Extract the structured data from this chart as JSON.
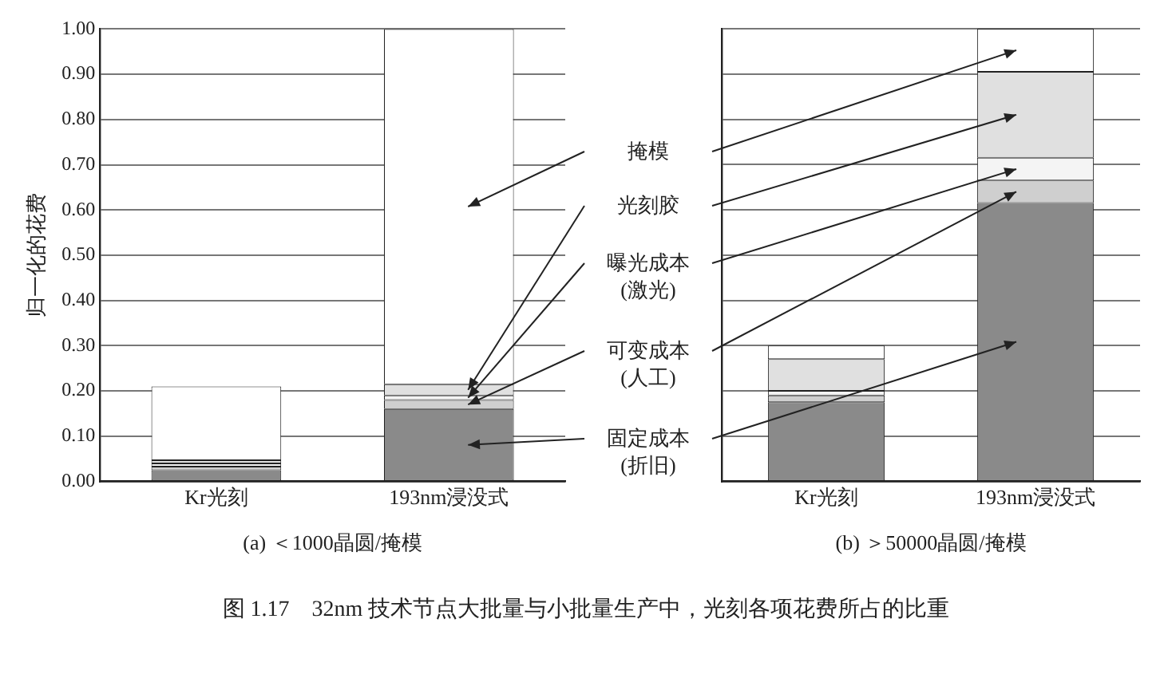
{
  "chart_data": [
    {
      "type": "bar",
      "stacked": true,
      "categories": [
        "Kr光刻",
        "193nm浸没式"
      ],
      "series": [
        {
          "name": "固定成本\n(折旧)",
          "color": "#8a8a8a",
          "values": [
            0.025,
            0.16
          ]
        },
        {
          "name": "可变成本\n(人工)",
          "color": "#cfcfcf",
          "values": [
            0.008,
            0.02
          ]
        },
        {
          "name": "曝光成本\n(激光)",
          "color": "#f4f4f4",
          "values": [
            0.007,
            0.01
          ]
        },
        {
          "name": "光刻胶",
          "color": "#e0e0e0",
          "values": [
            0.007,
            0.025
          ]
        },
        {
          "name": "掩模",
          "color": "#ffffff",
          "values": [
            0.163,
            0.785
          ]
        }
      ],
      "xlabel": "(a) ＜1000晶圆/掩模",
      "ylabel": "归一化的花费",
      "ylim": [
        0,
        1
      ],
      "yticks": [
        {
          "value": 0,
          "label": "0.00"
        },
        {
          "value": 0.1,
          "label": "0.10"
        },
        {
          "value": 0.2,
          "label": "0.20"
        },
        {
          "value": 0.3,
          "label": "0.30"
        },
        {
          "value": 0.4,
          "label": "0.40"
        },
        {
          "value": 0.5,
          "label": "0.50"
        },
        {
          "value": 0.6,
          "label": "0.60"
        },
        {
          "value": 0.7,
          "label": "0.70"
        },
        {
          "value": 0.8,
          "label": "0.80"
        },
        {
          "value": 0.9,
          "label": "0.90"
        },
        {
          "value": 1,
          "label": "1.00"
        }
      ],
      "grid": "y",
      "legend": false,
      "annotations": [
        "图 1.17　32nm 技术节点大批量与小批量生产中，光刻各项花费所占的比重"
      ]
    },
    {
      "type": "bar",
      "stacked": true,
      "categories": [
        "Kr光刻",
        "193nm浸没式"
      ],
      "series": [
        {
          "color": "#8a8a8a",
          "values": [
            0.175,
            0.615
          ]
        },
        {
          "color": "#cfcfcf",
          "values": [
            0.015,
            0.05
          ]
        },
        {
          "color": "#f4f4f4",
          "values": [
            0.01,
            0.05
          ]
        },
        {
          "color": "#e0e0e0",
          "values": [
            0.07,
            0.19
          ]
        },
        {
          "color": "#ffffff",
          "values": [
            0.03,
            0.095
          ]
        }
      ],
      "xlabel": "(b) ＞50000晶圆/掩模",
      "ylim": [
        0,
        1
      ],
      "yticks": [
        0,
        0.1,
        0.2,
        0.3,
        0.4,
        0.5,
        0.6,
        0.7,
        0.8,
        0.9,
        1
      ],
      "grid": "y",
      "legend": false,
      "tick_labels": "x"
    }
  ]
}
